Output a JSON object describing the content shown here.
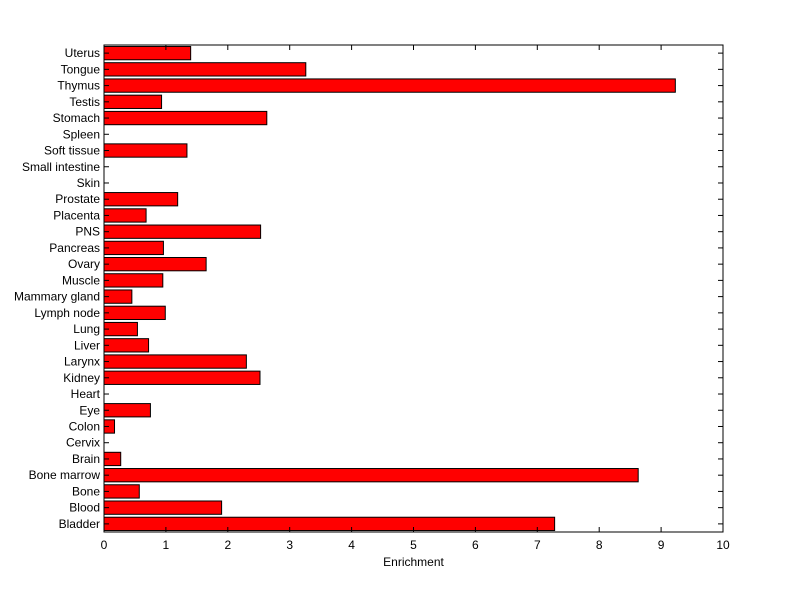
{
  "chart_data": {
    "type": "bar",
    "orientation": "horizontal",
    "title": "",
    "xlabel": "Enrichment",
    "ylabel": "",
    "xlim": [
      0,
      10
    ],
    "xticks": [
      "0",
      "1",
      "2",
      "3",
      "4",
      "5",
      "6",
      "7",
      "8",
      "9",
      "10"
    ],
    "grid": false,
    "bar_color": "#ff0000",
    "bar_edge_color": "#000000",
    "categories": [
      "Bladder",
      "Blood",
      "Bone",
      "Bone marrow",
      "Brain",
      "Cervix",
      "Colon",
      "Eye",
      "Heart",
      "Kidney",
      "Larynx",
      "Liver",
      "Lung",
      "Lymph node",
      "Mammary gland",
      "Muscle",
      "Ovary",
      "Pancreas",
      "PNS",
      "Placenta",
      "Prostate",
      "Skin",
      "Small intestine",
      "Soft tissue",
      "Spleen",
      "Stomach",
      "Testis",
      "Thymus",
      "Tongue",
      "Uterus"
    ],
    "values": [
      7.28,
      1.9,
      0.57,
      8.63,
      0.27,
      0,
      0.17,
      0.75,
      0,
      2.52,
      2.3,
      0.72,
      0.54,
      0.99,
      0.45,
      0.95,
      1.65,
      0.96,
      2.53,
      0.68,
      1.19,
      0,
      0,
      1.34,
      0,
      2.63,
      0.93,
      9.23,
      3.26,
      1.4
    ]
  }
}
